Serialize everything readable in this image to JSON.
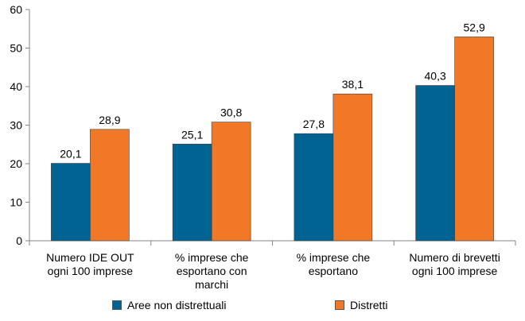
{
  "chart_data": {
    "type": "bar",
    "categories": [
      [
        "Numero IDE OUT",
        "ogni 100 imprese"
      ],
      [
        "% imprese che",
        "esportano con",
        "marchi"
      ],
      [
        "% imprese che",
        "esportano"
      ],
      [
        "Numero di brevetti",
        "ogni 100 imprese"
      ]
    ],
    "series": [
      {
        "name": "Aree non distrettuali",
        "color": "#006391",
        "values": [
          20.1,
          25.1,
          27.8,
          40.3
        ],
        "labels": [
          "20,1",
          "25,1",
          "27,8",
          "40,3"
        ]
      },
      {
        "name": "Distretti",
        "color": "#F07826",
        "values": [
          28.9,
          30.8,
          38.1,
          52.9
        ],
        "labels": [
          "28,9",
          "30,8",
          "38,1",
          "52,9"
        ]
      }
    ],
    "ylim": [
      0,
      60
    ],
    "yticks": [
      0,
      10,
      20,
      30,
      40,
      50,
      60
    ],
    "grid": false,
    "legend": "bottom"
  }
}
